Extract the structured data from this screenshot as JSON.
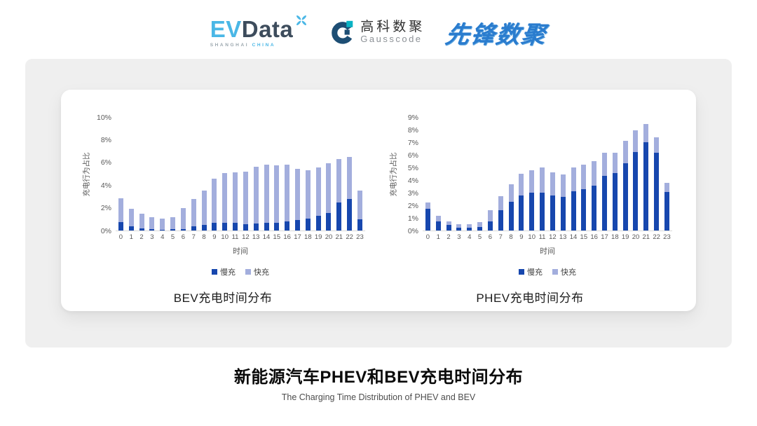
{
  "header": {
    "evdata": {
      "ev": "EV",
      "data": "Data",
      "sub_left": "SHANGHAI",
      "sub_right": "CHINA"
    },
    "gausscode": {
      "cn": "高科数聚",
      "en": "Gausscode"
    },
    "xianfeng": {
      "text": "先锋数聚"
    }
  },
  "colors": {
    "slow": "#1747AE",
    "fast": "#A3AEDD",
    "panel_bg": "#EFEFEF",
    "evdata_blue": "#4AB7E6",
    "evdata_dark": "#3D4C5C",
    "gausscode_dark": "#1D4E74",
    "gausscode_teal": "#0AB3C4",
    "xianfeng_blue": "#2A7CCE"
  },
  "chart_data": [
    {
      "type": "bar",
      "stacked": true,
      "title": "BEV充电时间分布",
      "xlabel": "时间",
      "ylabel": "充电行为占比",
      "ylim": [
        0,
        10
      ],
      "ytick_step": 2,
      "ytick_suffix": "%",
      "grid": false,
      "legend_position": "bottom",
      "categories": [
        "0",
        "1",
        "2",
        "3",
        "4",
        "5",
        "6",
        "7",
        "8",
        "9",
        "10",
        "11",
        "12",
        "13",
        "14",
        "15",
        "16",
        "17",
        "18",
        "19",
        "20",
        "21",
        "22",
        "23"
      ],
      "series": [
        {
          "name": "慢充",
          "color": "#1747AE",
          "values": [
            0.75,
            0.35,
            0.18,
            0.1,
            0.08,
            0.1,
            0.15,
            0.35,
            0.5,
            0.7,
            0.68,
            0.7,
            0.57,
            0.6,
            0.65,
            0.68,
            0.8,
            0.95,
            1.05,
            1.3,
            1.55,
            2.45,
            2.8,
            1.0
          ]
        },
        {
          "name": "快充",
          "color": "#A3AEDD",
          "values": [
            2.1,
            1.55,
            1.3,
            1.05,
            0.95,
            1.05,
            1.85,
            2.45,
            3.05,
            3.9,
            4.4,
            4.45,
            4.6,
            5.0,
            5.15,
            5.05,
            5.0,
            4.5,
            4.25,
            4.25,
            4.35,
            3.85,
            3.7,
            2.55
          ]
        }
      ]
    },
    {
      "type": "bar",
      "stacked": true,
      "title": "PHEV充电时间分布",
      "xlabel": "时间",
      "ylabel": "充电行为占比",
      "ylim": [
        0,
        9
      ],
      "ytick_step": 1,
      "ytick_suffix": "%",
      "grid": false,
      "legend_position": "bottom",
      "categories": [
        "0",
        "1",
        "2",
        "3",
        "4",
        "5",
        "6",
        "7",
        "8",
        "9",
        "10",
        "11",
        "12",
        "13",
        "14",
        "15",
        "16",
        "17",
        "18",
        "19",
        "20",
        "21",
        "22",
        "23"
      ],
      "series": [
        {
          "name": "慢充",
          "color": "#1747AE",
          "values": [
            1.75,
            0.75,
            0.45,
            0.25,
            0.25,
            0.3,
            0.75,
            1.6,
            2.3,
            2.8,
            3.0,
            3.0,
            2.8,
            2.65,
            3.1,
            3.3,
            3.55,
            4.35,
            4.55,
            5.35,
            6.2,
            7.0,
            6.15,
            3.05
          ]
        },
        {
          "name": "快充",
          "color": "#A3AEDD",
          "values": [
            0.45,
            0.4,
            0.3,
            0.25,
            0.25,
            0.35,
            0.85,
            1.1,
            1.35,
            1.7,
            1.8,
            2.0,
            1.8,
            1.8,
            1.9,
            1.95,
            1.95,
            1.8,
            1.6,
            1.75,
            1.75,
            1.45,
            1.25,
            0.75
          ]
        }
      ]
    }
  ],
  "footer": {
    "title": "新能源汽车PHEV和BEV充电时间分布",
    "subtitle": "The Charging Time Distribution of PHEV and BEV"
  }
}
